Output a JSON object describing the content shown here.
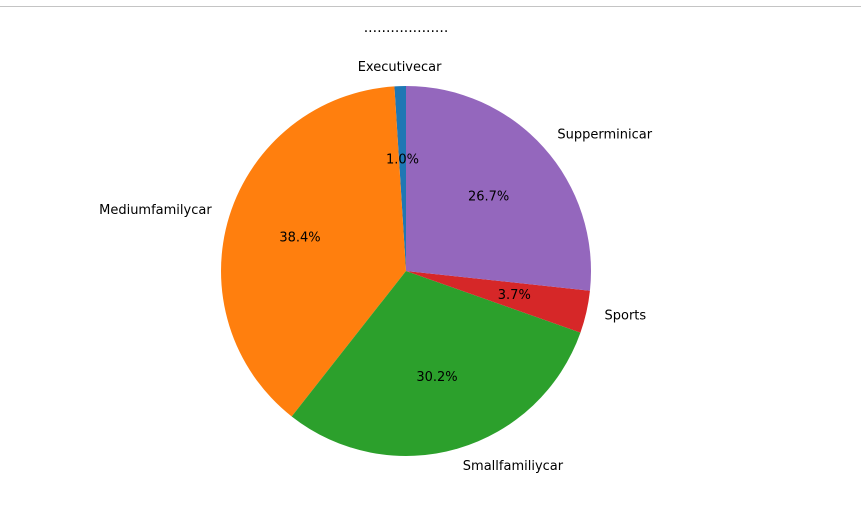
{
  "chart_data": {
    "type": "pie",
    "title": "...................",
    "start_angle_deg": 90,
    "direction": "counterclockwise",
    "slices": [
      {
        "label": "Executivecar",
        "value": 1.0,
        "pct_label": "1.0%",
        "color": "#1f77b4"
      },
      {
        "label": "Mediumfamilycar",
        "value": 38.4,
        "pct_label": "38.4%",
        "color": "#ff7f0e"
      },
      {
        "label": "Smallfamiliycar",
        "value": 30.2,
        "pct_label": "30.2%",
        "color": "#2ca02c"
      },
      {
        "label": "Sports",
        "value": 3.7,
        "pct_label": "3.7%",
        "color": "#d62728"
      },
      {
        "label": "Supperminicar",
        "value": 26.7,
        "pct_label": "26.7%",
        "color": "#9467bd"
      }
    ]
  }
}
